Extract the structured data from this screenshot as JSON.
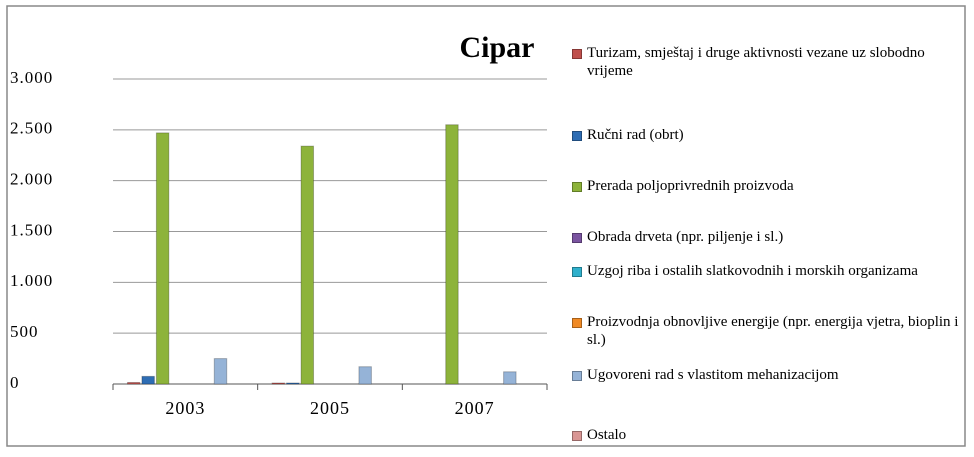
{
  "chart_data": {
    "type": "bar",
    "title": "Cipar",
    "categories": [
      "2003",
      "2005",
      "2007"
    ],
    "series": [
      {
        "name": "Turizam, smještaj i druge aktivnosti vezane uz slobodno vrijeme",
        "color": "#c0504d",
        "values": [
          15,
          10,
          0
        ]
      },
      {
        "name": "Ručni rad (obrt)",
        "color": "#2e6db4",
        "values": [
          75,
          10,
          0
        ]
      },
      {
        "name": "Prerada poljoprivrednih proizvoda",
        "color": "#8db33a",
        "values": [
          2470,
          2340,
          2550
        ]
      },
      {
        "name": "Obrada drveta (npr. piljenje i sl.)",
        "color": "#7a54a0",
        "values": [
          0,
          0,
          0
        ]
      },
      {
        "name": "Uzgoj riba i ostalih slatkovodnih i morskih organizama",
        "color": "#2fb0cc",
        "values": [
          0,
          0,
          0
        ]
      },
      {
        "name": "Proizvodnja obnovljive energije (npr. energija vjetra, bioplin i sl.)",
        "color": "#f08a24",
        "values": [
          0,
          0,
          0
        ]
      },
      {
        "name": "Ugovoreni rad s vlastitom mehanizacijom",
        "color": "#95b3d7",
        "values": [
          250,
          170,
          120
        ]
      },
      {
        "name": "Ostalo",
        "color": "#d99694",
        "values": [
          0,
          0,
          0
        ]
      }
    ],
    "ylim": [
      0,
      3000
    ],
    "yticks": [
      0,
      500,
      {
        "value": 1000,
        "label": "1.000"
      },
      {
        "value": 1500,
        "label": "1.500"
      },
      {
        "value": 2000,
        "label": "2.000"
      },
      {
        "value": 2500,
        "label": "2.500"
      },
      {
        "value": 3000,
        "label": "3.000"
      }
    ],
    "grid": true
  }
}
